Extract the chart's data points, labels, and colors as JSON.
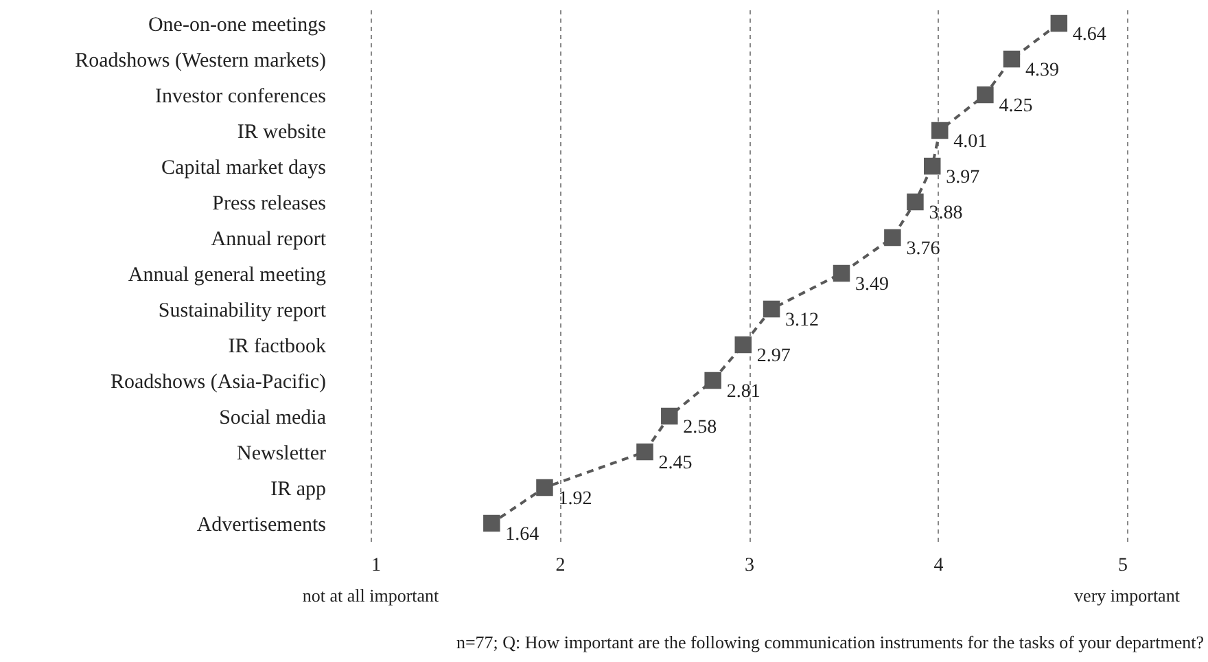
{
  "chart_data": {
    "type": "line",
    "orientation": "horizontal",
    "categories": [
      "One-on-one meetings",
      "Roadshows (Western markets)",
      "Investor conferences",
      "IR website",
      "Capital market days",
      "Press releases",
      "Annual report",
      "Annual general meeting",
      "Sustainability report",
      "IR factbook",
      "Roadshows (Asia-Pacific)",
      "Social media",
      "Newsletter",
      "IR app",
      "Advertisements"
    ],
    "series": [
      {
        "color": "#595959",
        "values": [
          4.64,
          4.39,
          4.25,
          4.01,
          3.97,
          3.88,
          3.76,
          3.49,
          3.12,
          2.97,
          2.81,
          2.58,
          2.45,
          1.92,
          1.64
        ]
      }
    ],
    "xlim": [
      1,
      5
    ],
    "xticks": [
      1,
      2,
      3,
      4,
      5
    ],
    "grid": "x",
    "marker": "square",
    "line_style": "dashed",
    "data_labels": true,
    "annotations": [
      "not at all important",
      "very important",
      "n=77; Q: How important are the following communication instruments for the tasks of your department?"
    ]
  }
}
